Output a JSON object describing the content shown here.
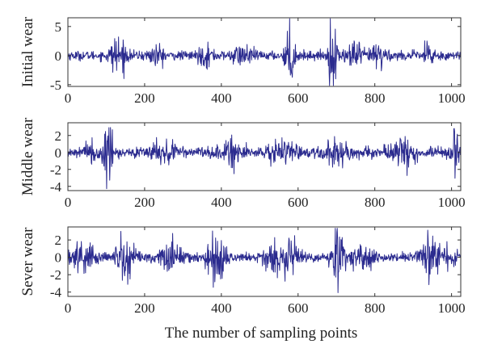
{
  "chart_data": {
    "type": "line",
    "xlabel": "The number of sampling points",
    "signal_length": 1024,
    "series_color": "#2b2b8f",
    "panels": [
      {
        "name": "Initial wear",
        "ylabel": "Initial wear",
        "xlim": [
          0,
          1024
        ],
        "ylim": [
          -5.3,
          6.5
        ],
        "xticks": [
          0,
          200,
          400,
          600,
          800,
          1000
        ],
        "yticks": [
          -5,
          0,
          5
        ],
        "base_amplitude": 0.7,
        "bursts": [
          {
            "center": 130,
            "width": 18,
            "amplitude": 3.0
          },
          {
            "center": 230,
            "width": 20,
            "amplitude": 1.3
          },
          {
            "center": 360,
            "width": 20,
            "amplitude": 1.2
          },
          {
            "center": 455,
            "width": 25,
            "amplitude": 1.2
          },
          {
            "center": 580,
            "width": 12,
            "amplitude": 4.5
          },
          {
            "center": 690,
            "width": 10,
            "amplitude": 5.5
          },
          {
            "center": 745,
            "width": 20,
            "amplitude": 2.0
          },
          {
            "center": 810,
            "width": 20,
            "amplitude": 2.0
          },
          {
            "center": 940,
            "width": 15,
            "amplitude": 1.8
          }
        ]
      },
      {
        "name": "Middle wear",
        "ylabel": "Middle wear",
        "xlim": [
          0,
          1024
        ],
        "ylim": [
          -4.5,
          3.5
        ],
        "xticks": [
          0,
          200,
          400,
          600,
          800,
          1000
        ],
        "yticks": [
          -4,
          -2,
          0,
          2
        ],
        "base_amplitude": 0.55,
        "bursts": [
          {
            "center": 105,
            "width": 10,
            "amplitude": 3.5
          },
          {
            "center": 60,
            "width": 25,
            "amplitude": 1.0
          },
          {
            "center": 250,
            "width": 30,
            "amplitude": 0.9
          },
          {
            "center": 415,
            "width": 30,
            "amplitude": 1.2
          },
          {
            "center": 560,
            "width": 30,
            "amplitude": 1.5
          },
          {
            "center": 700,
            "width": 30,
            "amplitude": 1.3
          },
          {
            "center": 870,
            "width": 30,
            "amplitude": 1.3
          },
          {
            "center": 1010,
            "width": 10,
            "amplitude": 3.0
          }
        ]
      },
      {
        "name": "Sever wear",
        "ylabel": "Sever wear",
        "xlim": [
          0,
          1024
        ],
        "ylim": [
          -4.5,
          3.5
        ],
        "xticks": [
          0,
          200,
          400,
          600,
          800,
          1000
        ],
        "yticks": [
          -4,
          -2,
          0,
          2
        ],
        "base_amplitude": 0.45,
        "bursts": [
          {
            "center": 35,
            "width": 40,
            "amplitude": 1.5
          },
          {
            "center": 150,
            "width": 25,
            "amplitude": 2.2
          },
          {
            "center": 270,
            "width": 25,
            "amplitude": 1.5
          },
          {
            "center": 390,
            "width": 25,
            "amplitude": 2.5
          },
          {
            "center": 530,
            "width": 25,
            "amplitude": 1.5
          },
          {
            "center": 585,
            "width": 20,
            "amplitude": 2.0
          },
          {
            "center": 705,
            "width": 15,
            "amplitude": 3.2
          },
          {
            "center": 770,
            "width": 25,
            "amplitude": 1.5
          },
          {
            "center": 940,
            "width": 20,
            "amplitude": 3.0
          },
          {
            "center": 990,
            "width": 20,
            "amplitude": 1.2
          }
        ]
      }
    ]
  }
}
